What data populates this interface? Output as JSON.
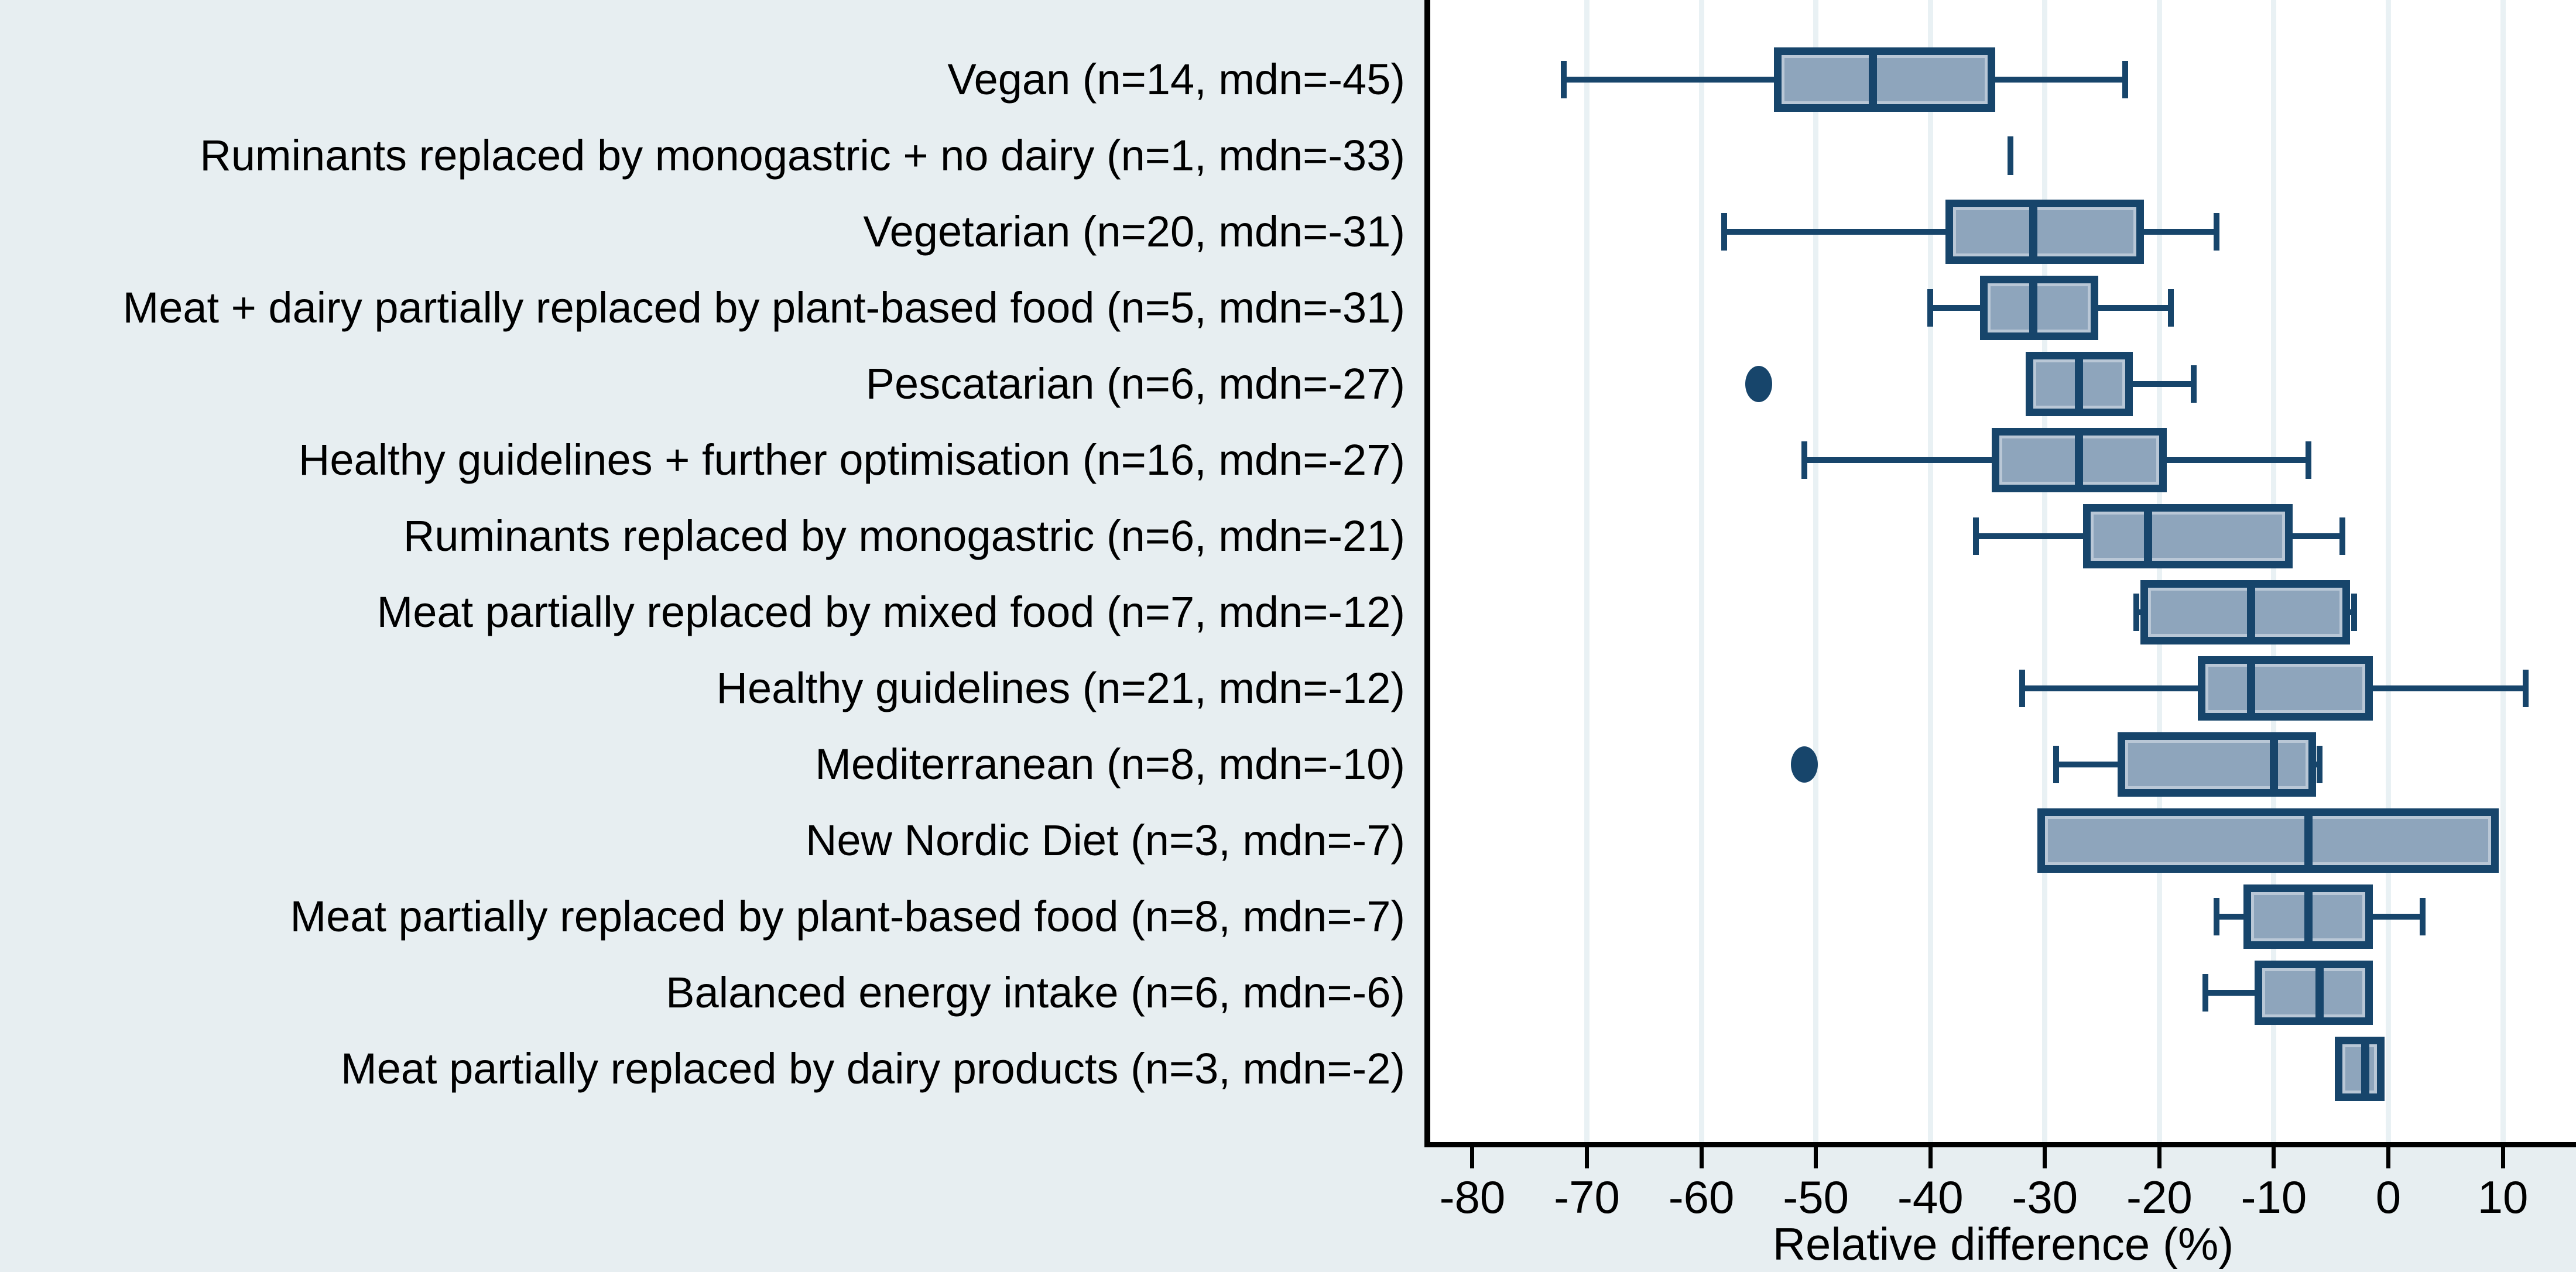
{
  "chart_data": {
    "type": "box",
    "orientation": "horizontal",
    "xlabel": "Relative difference (%)",
    "xlim_ticks": [
      -80,
      10
    ],
    "x_ticks": [
      -80,
      -70,
      -60,
      -50,
      -40,
      -30,
      -20,
      -10,
      0,
      10
    ],
    "gridline_values": [
      -70,
      -60,
      -50,
      -40,
      -30,
      -20,
      -10,
      0,
      10
    ],
    "grid": true,
    "legend": false,
    "colors": {
      "background": "#e7eef1",
      "plot_background": "#ffffff",
      "gridline": "#e9f1f4",
      "axis": "#000000",
      "box_fill": "#8ea5bc",
      "box_border": "#17456b",
      "box_inner_highlight": "#b9c7d6",
      "text": "#000000"
    },
    "series": [
      {
        "label": "Vegan (n=14, mdn=-45)",
        "name": "Vegan",
        "n": 14,
        "mdn": -45,
        "whisker_low": -72,
        "q1": -53,
        "median": -45,
        "q3": -35,
        "whisker_high": -23,
        "outliers": []
      },
      {
        "label": "Ruminants replaced by monogastric + no dairy (n=1, mdn=-33)",
        "name": "Ruminants replaced by monogastric + no dairy",
        "n": 1,
        "mdn": -33,
        "single_value": -33,
        "outliers": []
      },
      {
        "label": "Vegetarian (n=20, mdn=-31)",
        "name": "Vegetarian",
        "n": 20,
        "mdn": -31,
        "whisker_low": -58,
        "q1": -38,
        "median": -31,
        "q3": -22,
        "whisker_high": -15,
        "outliers": []
      },
      {
        "label": "Meat + dairy partially replaced by plant-based food (n=5, mdn=-31)",
        "name": "Meat + dairy partially replaced by plant-based food",
        "n": 5,
        "mdn": -31,
        "whisker_low": -40,
        "q1": -35,
        "median": -31,
        "q3": -26,
        "whisker_high": -19,
        "outliers": []
      },
      {
        "label": "Pescatarian (n=6, mdn=-27)",
        "name": "Pescatarian",
        "n": 6,
        "mdn": -27,
        "whisker_low": -31,
        "q1": -31,
        "median": -27,
        "q3": -23,
        "whisker_high": -17,
        "outliers": [
          -55
        ]
      },
      {
        "label": "Healthy guidelines + further optimisation (n=16, mdn=-27)",
        "name": "Healthy guidelines + further optimisation",
        "n": 16,
        "mdn": -27,
        "whisker_low": -51,
        "q1": -34,
        "median": -27,
        "q3": -20,
        "whisker_high": -7,
        "outliers": []
      },
      {
        "label": "Ruminants replaced by monogastric (n=6, mdn=-21)",
        "name": "Ruminants replaced by monogastric",
        "n": 6,
        "mdn": -21,
        "whisker_low": -36,
        "q1": -26,
        "median": -21,
        "q3": -9,
        "whisker_high": -4,
        "outliers": []
      },
      {
        "label": "Meat partially replaced by mixed food (n=7, mdn=-12)",
        "name": "Meat partially replaced by mixed food",
        "n": 7,
        "mdn": -12,
        "whisker_low": -22,
        "q1": -21,
        "median": -12,
        "q3": -4,
        "whisker_high": -3,
        "outliers": []
      },
      {
        "label": "Healthy guidelines (n=21, mdn=-12)",
        "name": "Healthy guidelines",
        "n": 21,
        "mdn": -12,
        "whisker_low": -32,
        "q1": -16,
        "median": -12,
        "q3": -2,
        "whisker_high": 12,
        "outliers": []
      },
      {
        "label": "Mediterranean (n=8, mdn=-10)",
        "name": "Mediterranean",
        "n": 8,
        "mdn": -10,
        "whisker_low": -29,
        "q1": -23,
        "median": -10,
        "q3": -7,
        "whisker_high": -6,
        "outliers": [
          -51
        ]
      },
      {
        "label": "New Nordic Diet (n=3, mdn=-7)",
        "name": "New Nordic Diet",
        "n": 3,
        "mdn": -7,
        "whisker_low": -30,
        "q1": -30,
        "median": -7,
        "q3": 9,
        "whisker_high": 9,
        "outliers": []
      },
      {
        "label": "Meat partially replaced by plant-based food (n=8, mdn=-7)",
        "name": "Meat partially replaced by plant-based food",
        "n": 8,
        "mdn": -7,
        "whisker_low": -15,
        "q1": -12,
        "median": -7,
        "q3": -2,
        "whisker_high": 3,
        "outliers": []
      },
      {
        "label": "Balanced energy intake (n=6, mdn=-6)",
        "name": "Balanced energy intake",
        "n": 6,
        "mdn": -6,
        "whisker_low": -16,
        "q1": -11,
        "median": -6,
        "q3": -2,
        "whisker_high": -2,
        "outliers": []
      },
      {
        "label": "Meat partially replaced by dairy products (n=3, mdn=-2)",
        "name": "Meat partially replaced by dairy products",
        "n": 3,
        "mdn": -2,
        "whisker_low": -4,
        "q1": -4,
        "median": -2,
        "q3": -1,
        "whisker_high": -1,
        "outliers": []
      }
    ]
  }
}
